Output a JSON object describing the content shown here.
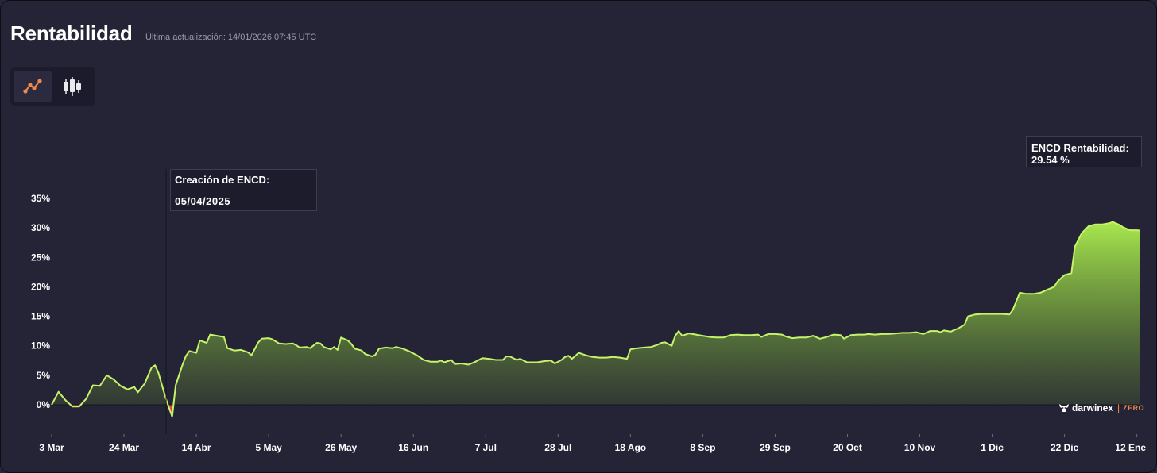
{
  "header": {
    "title": "Rentabilidad",
    "updated": "Última actualización: 14/01/2026 07:45 UTC"
  },
  "toolbar": {
    "line_icon": "line-chart-icon",
    "candle_icon": "candlestick-icon",
    "active": "line"
  },
  "colors": {
    "background": "#252436",
    "line": "#c6f36a",
    "area_top": "#a8e84f",
    "negative": "#e0434b",
    "accent": "#f08a4b"
  },
  "annotations": {
    "creation_label": "Creación de ENCD:",
    "creation_date": "05/04/2025",
    "current_label": "ENCD Rentabilidad:",
    "current_value": "29.54 %"
  },
  "brand": {
    "logo_icon": "darwinex-bull-icon",
    "name": "darwinex",
    "tier": "ZERO"
  },
  "chart_data": {
    "type": "area",
    "ylim": [
      -2,
      36
    ],
    "yticks": [
      {
        "value": 0,
        "label": "0%"
      },
      {
        "value": 5,
        "label": "5%"
      },
      {
        "value": 10,
        "label": "10%"
      },
      {
        "value": 15,
        "label": "15%"
      },
      {
        "value": 20,
        "label": "20%"
      },
      {
        "value": 25,
        "label": "25%"
      },
      {
        "value": 30,
        "label": "30%"
      },
      {
        "value": 35,
        "label": "35%"
      }
    ],
    "xticks": [
      {
        "x": 0,
        "label": "3 Mar"
      },
      {
        "x": 21,
        "label": "24 Mar"
      },
      {
        "x": 42,
        "label": "14 Abr"
      },
      {
        "x": 63,
        "label": "5 May"
      },
      {
        "x": 84,
        "label": "26 May"
      },
      {
        "x": 105,
        "label": "16 Jun"
      },
      {
        "x": 126,
        "label": "7 Jul"
      },
      {
        "x": 147,
        "label": "28 Jul"
      },
      {
        "x": 168,
        "label": "18 Ago"
      },
      {
        "x": 189,
        "label": "8 Sep"
      },
      {
        "x": 210,
        "label": "29 Sep"
      },
      {
        "x": 231,
        "label": "20 Oct"
      },
      {
        "x": 252,
        "label": "10 Nov"
      },
      {
        "x": 273,
        "label": "1 Dic"
      },
      {
        "x": 294,
        "label": "22 Dic"
      },
      {
        "x": 315,
        "label": "12 Ene"
      }
    ],
    "marker_x": 33,
    "series": [
      {
        "points": [
          [
            0,
            0
          ],
          [
            2,
            2.2
          ],
          [
            4,
            0.8
          ],
          [
            6,
            -0.3
          ],
          [
            8,
            -0.3
          ],
          [
            10,
            1.0
          ],
          [
            12,
            3.3
          ],
          [
            14,
            3.2
          ],
          [
            16,
            5.0
          ],
          [
            18,
            4.3
          ],
          [
            20,
            3.2
          ],
          [
            22,
            2.6
          ],
          [
            24,
            3.0
          ],
          [
            25,
            2.1
          ],
          [
            27,
            3.6
          ],
          [
            29,
            6.3
          ],
          [
            30,
            6.7
          ],
          [
            31,
            5.4
          ],
          [
            33,
            1.3
          ],
          [
            34,
            -0.4
          ],
          [
            35,
            -2.0
          ],
          [
            36,
            3.3
          ],
          [
            38,
            6.8
          ],
          [
            39,
            8.3
          ],
          [
            40,
            9.1
          ],
          [
            42,
            8.8
          ],
          [
            43,
            10.9
          ],
          [
            45,
            10.5
          ],
          [
            46,
            11.9
          ],
          [
            48,
            11.7
          ],
          [
            50,
            11.5
          ],
          [
            51,
            9.6
          ],
          [
            53,
            9.2
          ],
          [
            55,
            9.3
          ],
          [
            57,
            8.9
          ],
          [
            58,
            8.4
          ],
          [
            59,
            9.5
          ],
          [
            60,
            10.6
          ],
          [
            61,
            11.2
          ],
          [
            63,
            11.3
          ],
          [
            64,
            11.1
          ],
          [
            66,
            10.4
          ],
          [
            68,
            10.3
          ],
          [
            70,
            10.4
          ],
          [
            71,
            10.1
          ],
          [
            72,
            9.7
          ],
          [
            74,
            9.8
          ],
          [
            75,
            9.6
          ],
          [
            77,
            10.5
          ],
          [
            78,
            10.4
          ],
          [
            79,
            9.8
          ],
          [
            81,
            9.4
          ],
          [
            82,
            9.8
          ],
          [
            83,
            9.3
          ],
          [
            84,
            11.4
          ],
          [
            86,
            10.9
          ],
          [
            87,
            10.3
          ],
          [
            88,
            9.5
          ],
          [
            90,
            9.2
          ],
          [
            91,
            8.6
          ],
          [
            93,
            8.2
          ],
          [
            94,
            8.5
          ],
          [
            95,
            9.5
          ],
          [
            97,
            9.7
          ],
          [
            99,
            9.6
          ],
          [
            100,
            9.8
          ],
          [
            102,
            9.5
          ],
          [
            104,
            9.0
          ],
          [
            106,
            8.4
          ],
          [
            108,
            7.6
          ],
          [
            110,
            7.3
          ],
          [
            112,
            7.3
          ],
          [
            113,
            7.5
          ],
          [
            114,
            7.2
          ],
          [
            116,
            7.6
          ],
          [
            117,
            6.9
          ],
          [
            119,
            7.0
          ],
          [
            121,
            6.8
          ],
          [
            123,
            7.3
          ],
          [
            125,
            7.9
          ],
          [
            127,
            7.8
          ],
          [
            129,
            7.6
          ],
          [
            131,
            7.6
          ],
          [
            132,
            8.2
          ],
          [
            133,
            8.2
          ],
          [
            135,
            7.6
          ],
          [
            136,
            7.8
          ],
          [
            138,
            7.2
          ],
          [
            141,
            7.2
          ],
          [
            143,
            7.4
          ],
          [
            145,
            7.5
          ],
          [
            146,
            7.0
          ],
          [
            148,
            7.6
          ],
          [
            149,
            8.1
          ],
          [
            150,
            8.3
          ],
          [
            151,
            7.8
          ],
          [
            153,
            8.8
          ],
          [
            155,
            8.4
          ],
          [
            157,
            8.1
          ],
          [
            159,
            8.0
          ],
          [
            161,
            8.0
          ],
          [
            163,
            8.1
          ],
          [
            165,
            8.0
          ],
          [
            167,
            7.8
          ],
          [
            168,
            9.4
          ],
          [
            170,
            9.6
          ],
          [
            172,
            9.7
          ],
          [
            174,
            9.8
          ],
          [
            176,
            10.2
          ],
          [
            177,
            10.5
          ],
          [
            178,
            10.6
          ],
          [
            180,
            10.0
          ],
          [
            181,
            11.7
          ],
          [
            182,
            12.5
          ],
          [
            183,
            11.7
          ],
          [
            185,
            12.1
          ],
          [
            187,
            11.9
          ],
          [
            189,
            11.7
          ],
          [
            191,
            11.5
          ],
          [
            193,
            11.4
          ],
          [
            195,
            11.4
          ],
          [
            197,
            11.8
          ],
          [
            199,
            11.9
          ],
          [
            201,
            11.8
          ],
          [
            203,
            11.8
          ],
          [
            205,
            11.9
          ],
          [
            206,
            11.5
          ],
          [
            208,
            12.0
          ],
          [
            210,
            12.0
          ],
          [
            212,
            11.9
          ],
          [
            213,
            11.6
          ],
          [
            215,
            11.3
          ],
          [
            217,
            11.4
          ],
          [
            219,
            11.4
          ],
          [
            221,
            11.7
          ],
          [
            223,
            11.2
          ],
          [
            225,
            11.5
          ],
          [
            227,
            11.9
          ],
          [
            229,
            11.8
          ],
          [
            230,
            11.2
          ],
          [
            232,
            11.8
          ],
          [
            234,
            11.9
          ],
          [
            236,
            11.9
          ],
          [
            237,
            12.0
          ],
          [
            239,
            11.9
          ],
          [
            241,
            12.0
          ],
          [
            243,
            12.0
          ],
          [
            245,
            12.1
          ],
          [
            247,
            12.2
          ],
          [
            249,
            12.2
          ],
          [
            251,
            12.3
          ],
          [
            253,
            12.0
          ],
          [
            255,
            12.5
          ],
          [
            257,
            12.5
          ],
          [
            258,
            12.3
          ],
          [
            259,
            12.6
          ],
          [
            261,
            12.4
          ],
          [
            262,
            12.7
          ],
          [
            263,
            12.9
          ],
          [
            265,
            13.6
          ],
          [
            266,
            15.0
          ],
          [
            268,
            15.3
          ],
          [
            270,
            15.4
          ],
          [
            272,
            15.4
          ],
          [
            274,
            15.4
          ],
          [
            276,
            15.4
          ],
          [
            278,
            15.3
          ],
          [
            279,
            16.1
          ],
          [
            281,
            19.0
          ],
          [
            283,
            18.8
          ],
          [
            285,
            18.8
          ],
          [
            287,
            19.0
          ],
          [
            289,
            19.5
          ],
          [
            291,
            20.0
          ],
          [
            292,
            20.9
          ],
          [
            294,
            22.0
          ],
          [
            296,
            22.3
          ],
          [
            297,
            26.8
          ],
          [
            299,
            29.1
          ],
          [
            301,
            30.3
          ],
          [
            303,
            30.6
          ],
          [
            305,
            30.6
          ],
          [
            307,
            30.8
          ],
          [
            308,
            31.0
          ],
          [
            310,
            30.5
          ],
          [
            311,
            30.1
          ],
          [
            313,
            29.6
          ],
          [
            315,
            29.6
          ],
          [
            316,
            29.54
          ]
        ]
      }
    ]
  }
}
